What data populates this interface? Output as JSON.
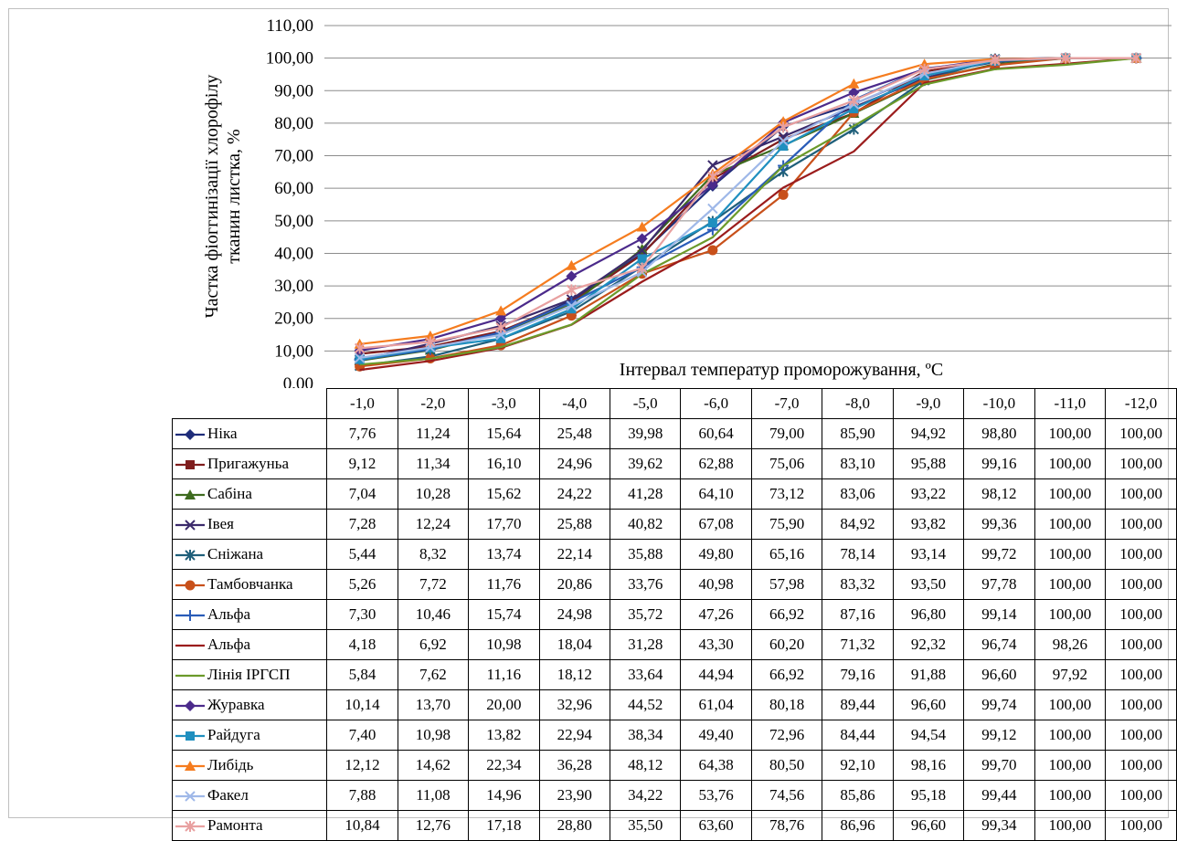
{
  "chart_data": {
    "type": "line",
    "title": "",
    "ylabel_line1": "Частка фіоггинізації хлорофілу",
    "ylabel_line2": "тканин листка, %",
    "xlabel": "Інтервал температур  проморожування,  ºC",
    "ylim": [
      0,
      110
    ],
    "yticks": [
      "0,00",
      "10,00",
      "20,00",
      "30,00",
      "40,00",
      "50,00",
      "60,00",
      "70,00",
      "80,00",
      "90,00",
      "100,00",
      "110,00"
    ],
    "grid": true,
    "legend": "data-table",
    "categories": [
      "-1,0",
      "-2,0",
      "-3,0",
      "-4,0",
      "-5,0",
      "-6,0",
      "-7,0",
      "-8,0",
      "-9,0",
      "-10,0",
      "-11,0",
      "-12,0"
    ],
    "series": [
      {
        "name": "Ніка",
        "marker": "diamond",
        "color": "#1f2d7a",
        "values": [
          "7,76",
          "11,24",
          "15,64",
          "25,48",
          "39,98",
          "60,64",
          "79,00",
          "85,90",
          "94,92",
          "98,80",
          "100,00",
          "100,00"
        ]
      },
      {
        "name": "Пригажуньа",
        "marker": "square",
        "color": "#7f1d1d",
        "values": [
          "9,12",
          "11,34",
          "16,10",
          "24,96",
          "39,62",
          "62,88",
          "75,06",
          "83,10",
          "95,88",
          "99,16",
          "100,00",
          "100,00"
        ]
      },
      {
        "name": "Сабіна",
        "marker": "triangle",
        "color": "#3e6b1f",
        "values": [
          "7,04",
          "10,28",
          "15,62",
          "24,22",
          "41,28",
          "64,10",
          "73,12",
          "83,06",
          "93,22",
          "98,12",
          "100,00",
          "100,00"
        ]
      },
      {
        "name": "Івея",
        "marker": "x",
        "color": "#3b2a6b",
        "values": [
          "7,28",
          "12,24",
          "17,70",
          "25,88",
          "40,82",
          "67,08",
          "75,90",
          "84,92",
          "93,82",
          "99,36",
          "100,00",
          "100,00"
        ]
      },
      {
        "name": "Сніжана",
        "marker": "star",
        "color": "#1f5f7a",
        "values": [
          "5,44",
          "8,32",
          "13,74",
          "22,14",
          "35,88",
          "49,80",
          "65,16",
          "78,14",
          "93,14",
          "99,72",
          "100,00",
          "100,00"
        ]
      },
      {
        "name": "Тамбовчанка",
        "marker": "circle",
        "color": "#c8501a",
        "values": [
          "5,26",
          "7,72",
          "11,76",
          "20,86",
          "33,76",
          "40,98",
          "57,98",
          "83,32",
          "93,50",
          "97,78",
          "100,00",
          "100,00"
        ]
      },
      {
        "name": "Альфа",
        "marker": "plus",
        "color": "#2a5cb8",
        "values": [
          "7,30",
          "10,46",
          "15,74",
          "24,98",
          "35,72",
          "47,26",
          "66,92",
          "87,16",
          "96,80",
          "99,14",
          "100,00",
          "100,00"
        ]
      },
      {
        "name": "Альфа",
        "marker": "none",
        "color": "#9b1c1c",
        "values": [
          "4,18",
          "6,92",
          "10,98",
          "18,04",
          "31,28",
          "43,30",
          "60,20",
          "71,32",
          "92,32",
          "96,74",
          "98,26",
          "100,00"
        ]
      },
      {
        "name": "Лінія ІРГСП",
        "marker": "none",
        "color": "#6b9a2a",
        "values": [
          "5,84",
          "7,62",
          "11,16",
          "18,12",
          "33,64",
          "44,94",
          "66,92",
          "79,16",
          "91,88",
          "96,60",
          "97,92",
          "100,00"
        ]
      },
      {
        "name": "Журавка",
        "marker": "diamond",
        "color": "#4b2a8b",
        "values": [
          "10,14",
          "13,70",
          "20,00",
          "32,96",
          "44,52",
          "61,04",
          "80,18",
          "89,44",
          "96,60",
          "99,74",
          "100,00",
          "100,00"
        ]
      },
      {
        "name": "Райдуга",
        "marker": "square",
        "color": "#1f8fbf",
        "values": [
          "7,40",
          "10,98",
          "13,82",
          "22,94",
          "38,34",
          "49,40",
          "72,96",
          "84,44",
          "94,54",
          "99,12",
          "100,00",
          "100,00"
        ]
      },
      {
        "name": "Либідь",
        "marker": "triangle",
        "color": "#f57c1f",
        "values": [
          "12,12",
          "14,62",
          "22,34",
          "36,28",
          "48,12",
          "64,38",
          "80,50",
          "92,10",
          "98,16",
          "99,70",
          "100,00",
          "100,00"
        ]
      },
      {
        "name": "Факел",
        "marker": "x",
        "color": "#9fb8e8",
        "values": [
          "7,88",
          "11,08",
          "14,96",
          "23,90",
          "34,22",
          "53,76",
          "74,56",
          "85,86",
          "95,18",
          "99,44",
          "100,00",
          "100,00"
        ]
      },
      {
        "name": "Рамонта",
        "marker": "star",
        "color": "#e8a0a0",
        "values": [
          "10,84",
          "12,76",
          "17,18",
          "28,80",
          "35,50",
          "63,60",
          "78,76",
          "86,96",
          "96,60",
          "99,34",
          "100,00",
          "100,00"
        ]
      }
    ]
  }
}
